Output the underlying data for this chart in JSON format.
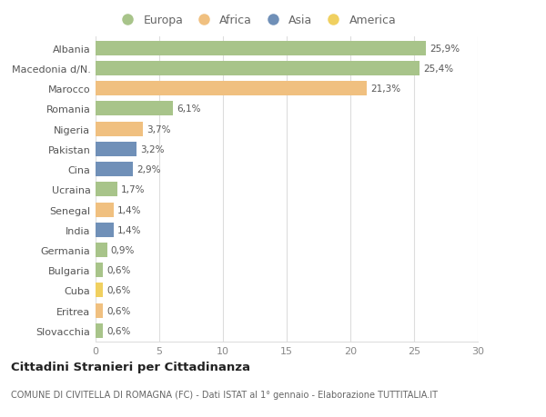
{
  "categories": [
    "Albania",
    "Macedonia d/N.",
    "Marocco",
    "Romania",
    "Nigeria",
    "Pakistan",
    "Cina",
    "Ucraina",
    "Senegal",
    "India",
    "Germania",
    "Bulgaria",
    "Cuba",
    "Eritrea",
    "Slovacchia"
  ],
  "values": [
    25.9,
    25.4,
    21.3,
    6.1,
    3.7,
    3.2,
    2.9,
    1.7,
    1.4,
    1.4,
    0.9,
    0.6,
    0.6,
    0.6,
    0.6
  ],
  "labels": [
    "25,9%",
    "25,4%",
    "21,3%",
    "6,1%",
    "3,7%",
    "3,2%",
    "2,9%",
    "1,7%",
    "1,4%",
    "1,4%",
    "0,9%",
    "0,6%",
    "0,6%",
    "0,6%",
    "0,6%"
  ],
  "colors": [
    "#a8c48a",
    "#a8c48a",
    "#f0c080",
    "#a8c48a",
    "#f0c080",
    "#7090b8",
    "#7090b8",
    "#a8c48a",
    "#f0c080",
    "#7090b8",
    "#a8c48a",
    "#a8c48a",
    "#f0d060",
    "#f0c080",
    "#a8c48a"
  ],
  "legend_labels": [
    "Europa",
    "Africa",
    "Asia",
    "America"
  ],
  "legend_colors": [
    "#a8c48a",
    "#f0c080",
    "#7090b8",
    "#f0d060"
  ],
  "title": "Cittadini Stranieri per Cittadinanza",
  "subtitle": "COMUNE DI CIVITELLA DI ROMAGNA (FC) - Dati ISTAT al 1° gennaio - Elaborazione TUTTITALIA.IT",
  "xlim": [
    0,
    30
  ],
  "xticks": [
    0,
    5,
    10,
    15,
    20,
    25,
    30
  ],
  "background_color": "#ffffff",
  "grid_color": "#dddddd",
  "bar_height": 0.72
}
